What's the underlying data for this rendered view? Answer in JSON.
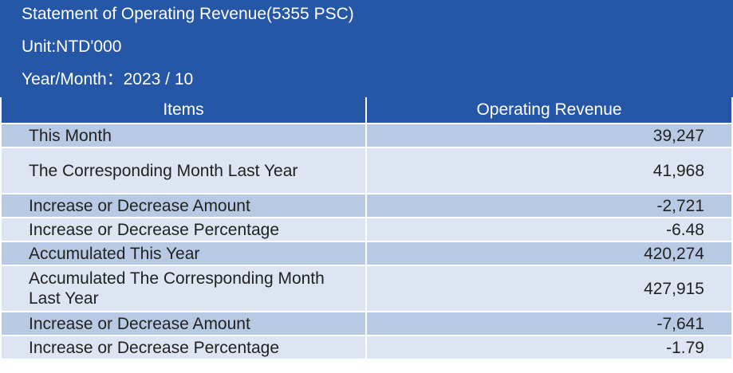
{
  "header": {
    "title": "Statement of Operating Revenue(5355 PSC)",
    "unit": "Unit:NTD'000",
    "year_month": "Year/Month：2023 / 10"
  },
  "table": {
    "columns": [
      "Items",
      "Operating Revenue"
    ],
    "rows": [
      {
        "item": "This Month",
        "value": "39,247"
      },
      {
        "item": "The Corresponding Month Last Year",
        "value": "41,968"
      },
      {
        "item": "Increase or Decrease Amount",
        "value": "-2,721"
      },
      {
        "item": "Increase or Decrease Percentage",
        "value": "-6.48"
      },
      {
        "item": "Accumulated This Year",
        "value": "420,274"
      },
      {
        "item": "Accumulated The Corresponding Month Last Year",
        "value": "427,915"
      },
      {
        "item": "Increase or Decrease Amount",
        "value": "-7,641"
      },
      {
        "item": "Increase or Decrease Percentage",
        "value": "-1.79"
      }
    ]
  },
  "colors": {
    "header_bg": "#2557a6",
    "row_shade": "#b8cae3",
    "row_plain": "#dce5f1"
  }
}
